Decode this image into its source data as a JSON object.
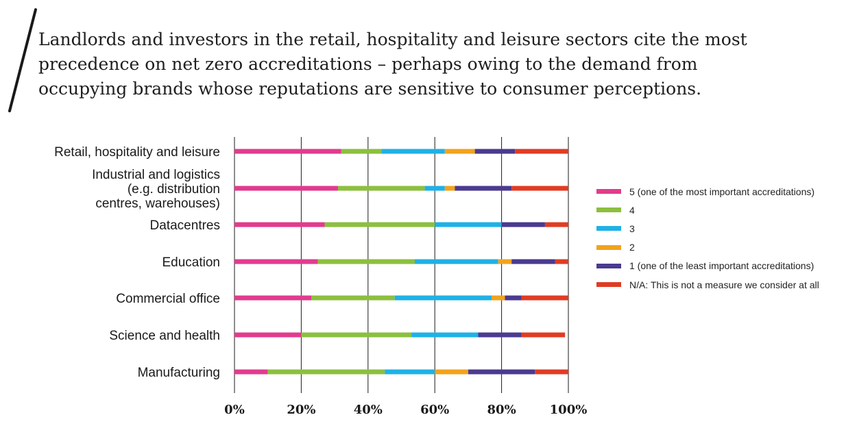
{
  "headline": "Landlords and investors in the retail, hospitality and leisure sectors cite the most\nprecedence on net zero accreditations – perhaps owing to the demand from\noccupying brands whose reputations are sensitive to consumer perceptions.",
  "chart_data": {
    "type": "bar",
    "orientation": "horizontal",
    "stacked": true,
    "categories": [
      "Retail, hospitality and leisure",
      "Industrial and logistics\n(e.g. distribution\ncentres, warehouses)",
      "Datacentres",
      "Education",
      "Commercial office",
      "Science and health",
      "Manufacturing"
    ],
    "series": [
      {
        "name": "5 (one of the most important accreditations)",
        "color": "#e23b8e",
        "values": [
          32,
          31,
          27,
          25,
          23,
          20,
          10
        ]
      },
      {
        "name": "4",
        "color": "#8cbf3f",
        "values": [
          12,
          26,
          33,
          29,
          25,
          33,
          35
        ]
      },
      {
        "name": "3",
        "color": "#1fb1e6",
        "values": [
          19,
          6,
          20,
          25,
          29,
          20,
          15
        ]
      },
      {
        "name": "2",
        "color": "#f2a31b",
        "values": [
          9,
          3,
          0,
          4,
          4,
          0,
          10
        ]
      },
      {
        "name": "1 (one of the least important accreditations)",
        "color": "#4b3a8f",
        "values": [
          12,
          17,
          13,
          13,
          5,
          13,
          20
        ]
      },
      {
        "name": "N/A: This is not a measure we consider at all",
        "color": "#e03c24",
        "values": [
          16,
          17,
          7,
          4,
          14,
          13,
          10
        ]
      }
    ],
    "xlim": [
      0,
      100
    ],
    "xticks": [
      "0%",
      "20%",
      "40%",
      "60%",
      "80%",
      "100%"
    ],
    "grid": true,
    "legend": "right"
  }
}
